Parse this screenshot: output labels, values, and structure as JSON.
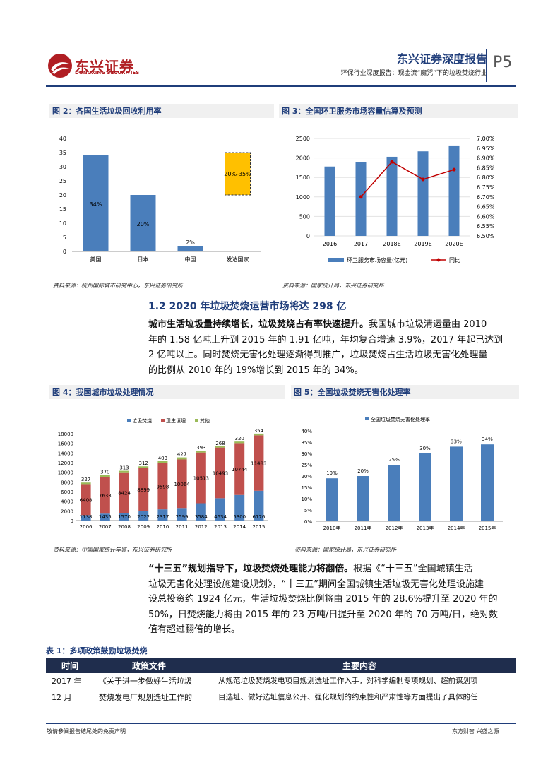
{
  "header": {
    "logo_cn": "东兴证券",
    "logo_en": "DONGXING SECURITIES",
    "report_type": "东兴证券深度报告",
    "subtitle": "环保行业深度报告：现金流“魔咒”下的垃圾焚烧行业",
    "page": "P5"
  },
  "fig2": {
    "caption": "图 2：各国生活垃圾回收利用率",
    "source": "资料来源：杭州国际城市研究中心，东兴证券研究所"
  },
  "fig3": {
    "caption": "图 3：全国环卫服务市场容量估算及预测",
    "source": "资料来源：国家统计局，东兴证券研究所"
  },
  "section": {
    "title": "1.2 2020 年垃圾焚烧运营市场将达 298 亿",
    "para1_bold": "城市生活垃圾量持续增长，垃圾焚烧占有率快速提升。",
    "para1_lines": [
      "我国城市垃圾清运量由 2010",
      "年的 1.58 亿吨上升到 2015 年的 1.91 亿吨，年均复合增速 3.9%，2017 年起已达到",
      "2 亿吨以上。同时焚烧无害化处理逐渐得到推广，垃圾焚烧占生活垃圾无害化处理量",
      "的比例从 2010 年的 19%增长到 2015 年的 34%。"
    ]
  },
  "fig4": {
    "caption": "图 4：我国城市垃圾处理情况",
    "source": "资料来源：中国国家统计年鉴，东兴证券研究所"
  },
  "fig5": {
    "caption": "图 5：全国垃圾焚烧无害化处理率",
    "source": "资料来源：国家统计局，东兴证券研究所"
  },
  "para2": {
    "bold": "“十三五”规划指导下，垃圾焚烧处理能力将翻倍。",
    "lines": [
      "根据《“十三五”全国城镇生活",
      "垃圾无害化处理设施建设规划》，“十三五”期间全国城镇生活垃圾无害化处理设施建",
      "设总投资约 1924 亿元，生活垃圾焚烧比例将由 2015 年的 28.6%提升至 2020 年的",
      "50%，日焚烧能力将由 2015 年的 23 万吨/日提升至 2020 年的 70 万吨/日，绝对数",
      "值有超过翻倍的增长。"
    ]
  },
  "table": {
    "caption": "表 1：多项政策鼓励垃圾焚烧",
    "headers": [
      "时间",
      "政策文件",
      "主要内容"
    ],
    "row1": {
      "time_lines": [
        "2017 年",
        "12 月"
      ],
      "doc_lines": [
        "《关于进一步做好生活垃圾",
        "焚烧发电厂规划选址工作的"
      ],
      "content_lines": [
        "从规范垃圾焚烧发电项目规划选址工作入手，对科学编制专项规划、超前谋划项",
        "目选址、做好选址信息公开、强化规划的约束性和严肃性等方面提出了具体的任"
      ]
    }
  },
  "footer": {
    "left": "敬请参阅报告结尾处的免责声明",
    "right": "东方财智 兴盛之源"
  },
  "colors": {
    "accent": "#1f3d7a",
    "bar_blue": "#4a7ebb",
    "bar_red": "#c0504d",
    "bar_green": "#9bbb59",
    "highlight": "#ffc000",
    "line_red": "#c00000"
  },
  "chart_data": [
    {
      "id": "fig2",
      "type": "bar",
      "categories": [
        "美国",
        "日本",
        "中国",
        "发达国家"
      ],
      "values": [
        34,
        20,
        2,
        null
      ],
      "range_bar": {
        "category": "发达国家",
        "low": 20,
        "high": 35,
        "label": "20%-35%"
      },
      "data_labels": [
        "34%",
        "20%",
        "2%",
        ""
      ],
      "ylim": [
        0,
        40
      ],
      "yticks": [
        0,
        5,
        10,
        15,
        20,
        25,
        30,
        35,
        40
      ]
    },
    {
      "id": "fig3",
      "type": "bar",
      "categories": [
        "2016",
        "2017",
        "2018E",
        "2019E",
        "2020E"
      ],
      "series": [
        {
          "name": "环卫服务市场容量(亿元)",
          "type": "bar",
          "values": [
            1780,
            1900,
            2030,
            2170,
            2320
          ]
        },
        {
          "name": "同比",
          "type": "line",
          "axis": "right",
          "values": [
            null,
            6.7,
            6.88,
            6.79,
            6.84
          ]
        }
      ],
      "ylim": [
        0,
        2500
      ],
      "yticks": [
        0,
        500,
        1000,
        1500,
        2000,
        2500
      ],
      "y2lim": [
        6.5,
        7.0
      ],
      "y2ticks": [
        "6.50%",
        "6.55%",
        "6.60%",
        "6.65%",
        "6.70%",
        "6.75%",
        "6.80%",
        "6.85%",
        "6.90%",
        "6.95%",
        "7.00%"
      ]
    },
    {
      "id": "fig4",
      "type": "bar",
      "stacked": true,
      "categories": [
        "2006",
        "2007",
        "2008",
        "2009",
        "2010",
        "2011",
        "2012",
        "2013",
        "2014",
        "2015"
      ],
      "series": [
        {
          "name": "垃圾焚烧",
          "values": [
            1138,
            1435,
            1570,
            2022,
            2317,
            2599,
            3584,
            4634,
            5300,
            6176
          ]
        },
        {
          "name": "卫生填埋",
          "values": [
            6408,
            7633,
            8424,
            8899,
            9598,
            10064,
            10513,
            10493,
            10744,
            11483
          ]
        },
        {
          "name": "其他",
          "values": [
            327,
            370,
            313,
            312,
            403,
            427,
            393,
            268,
            320,
            354
          ]
        }
      ],
      "ylim": [
        0,
        18000
      ],
      "yticks": [
        0,
        2000,
        4000,
        6000,
        8000,
        10000,
        12000,
        14000,
        16000,
        18000
      ]
    },
    {
      "id": "fig5",
      "type": "bar",
      "categories": [
        "2010年",
        "2011年",
        "2012年",
        "2013年",
        "2014年",
        "2015年"
      ],
      "series": [
        {
          "name": "全国垃圾焚烧无害化处理率",
          "values": [
            19,
            20,
            25,
            30,
            33,
            34
          ]
        }
      ],
      "data_labels": [
        "19%",
        "20%",
        "25%",
        "30%",
        "33%",
        "34%"
      ],
      "ylim": [
        0,
        40
      ],
      "yticks": [
        "0%",
        "5%",
        "10%",
        "15%",
        "20%",
        "25%",
        "30%",
        "35%",
        "40%"
      ]
    }
  ]
}
